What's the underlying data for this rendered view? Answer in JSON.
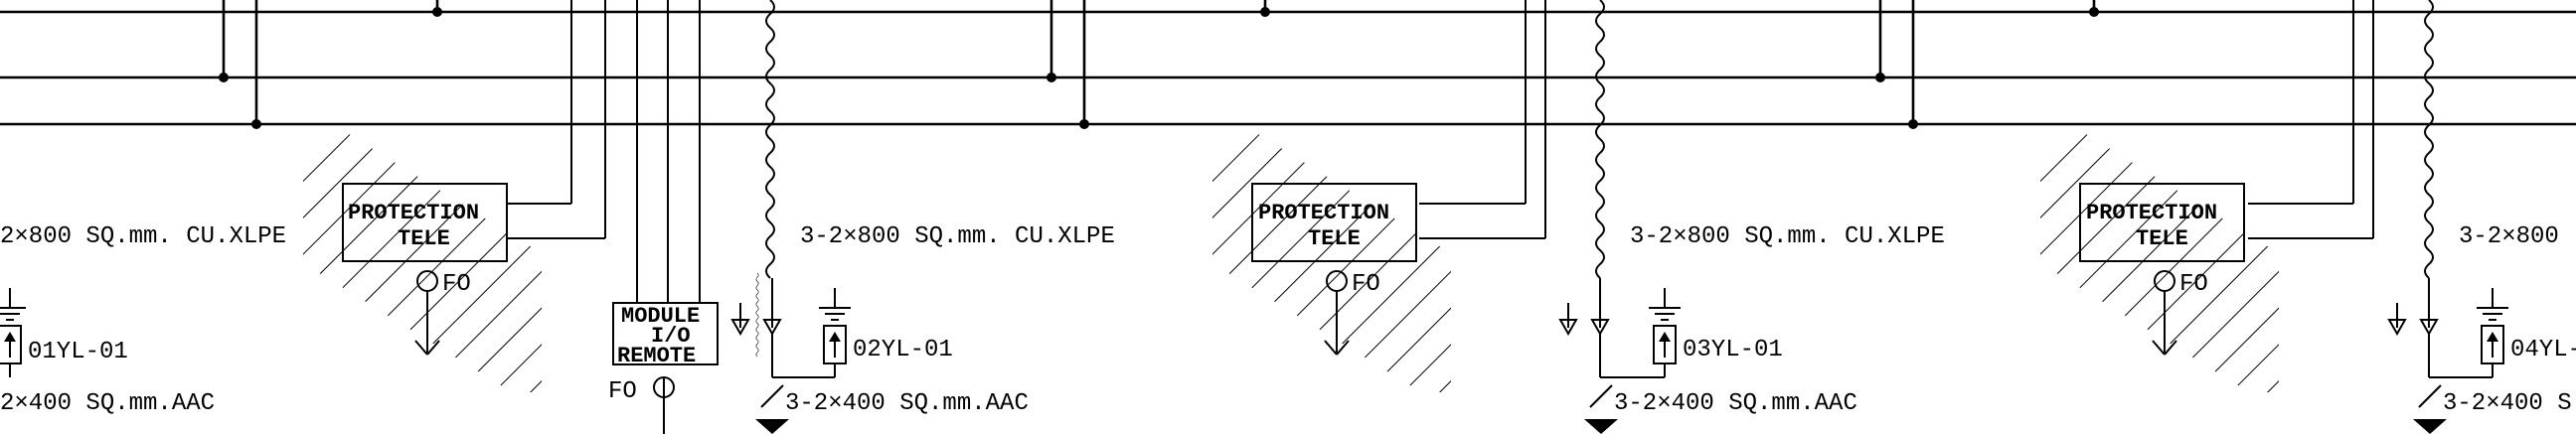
{
  "diagram": {
    "colors": {
      "ink": "#000000",
      "background": "#ffffff"
    },
    "left_edge": {
      "cable_label": "2×800 SQ.mm. CU.XLPE",
      "breaker_label": "01YL-01",
      "feeder_label": "2×400 SQ.mm.AAC"
    },
    "remote_module": {
      "line1": "MODULE",
      "line2": "I/O",
      "line3": "REMOTE",
      "fo_label": "FO"
    },
    "bays": [
      {
        "protection_label": "PROTECTION",
        "tele_label": "TELE",
        "fo_label": "FO",
        "cable_label": "3-2×800 SQ.mm. CU.XLPE",
        "breaker_label": "02YL-01",
        "feeder_label": "3-2×400 SQ.mm.AAC"
      },
      {
        "protection_label": "PROTECTION",
        "tele_label": "TELE",
        "fo_label": "FO",
        "cable_label": "3-2×800 SQ.mm. CU.XLPE",
        "breaker_label": "03YL-01",
        "feeder_label": "3-2×400 SQ.mm.AAC"
      },
      {
        "protection_label": "PROTECTION",
        "tele_label": "TELE",
        "fo_label": "FO",
        "cable_label": "3-2×800",
        "breaker_label": "04YL-",
        "feeder_label": "3-2×400 S"
      }
    ]
  }
}
